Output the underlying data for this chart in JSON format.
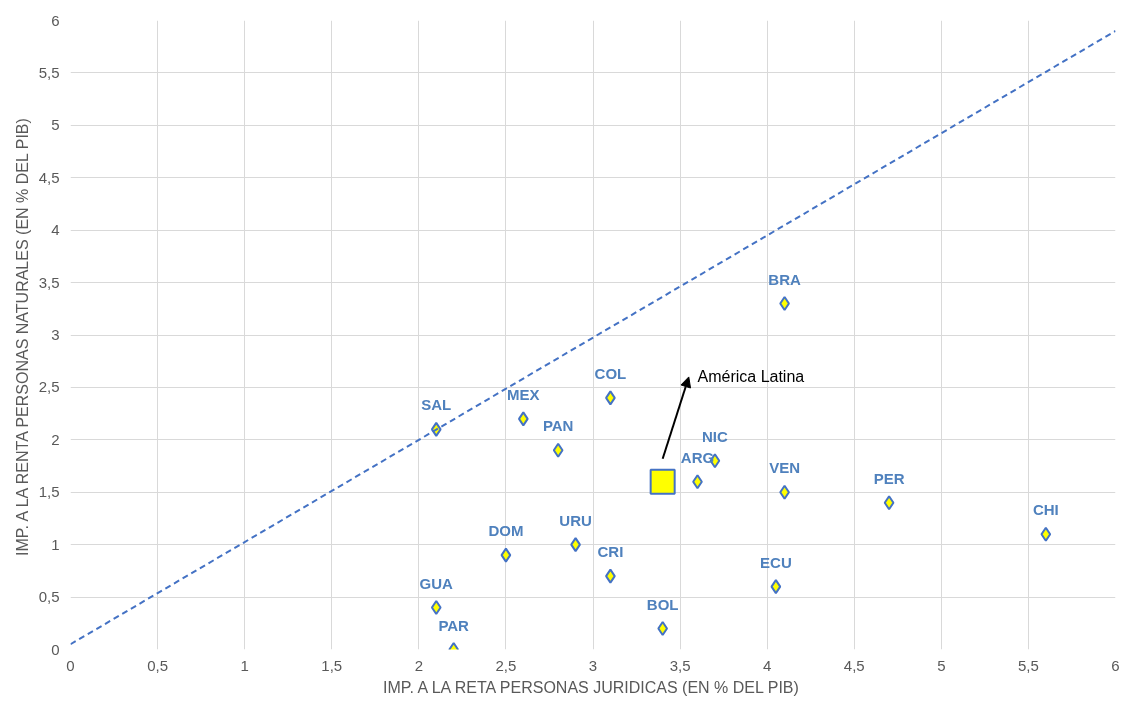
{
  "chart_data": {
    "type": "scatter",
    "xlabel": "IMP. A LA RETA PERSONAS JURIDICAS (EN % DEL PIB)",
    "ylabel": "IMP. A LA RENTA PERSONAS NATURALES (EN % DEL PIB)",
    "series": [
      {
        "marker": "diamond",
        "color": "#ffff00",
        "x": [
          4.1,
          3.1,
          2.1,
          2.6,
          2.8,
          3.7,
          3.6,
          4.1,
          4.7,
          5.6,
          2.5,
          2.9,
          3.1,
          4.05,
          2.1,
          2.2,
          3.4
        ],
        "values": [
          3.3,
          2.4,
          2.1,
          2.2,
          1.9,
          1.8,
          1.6,
          1.5,
          1.4,
          1.1,
          0.9,
          1.0,
          0.7,
          0.6,
          0.4,
          0.0,
          0.2
        ]
      },
      {
        "marker": "square",
        "color": "#ffff00",
        "x": [
          3.4
        ],
        "values": [
          1.6
        ]
      },
      {
        "type": "line",
        "line_style": "dashed",
        "color": "#4472c4",
        "x": [
          0,
          6
        ],
        "values": [
          0.05,
          5.9
        ]
      }
    ],
    "annotations": [
      {
        "text": "BRA",
        "x": 4.1,
        "y": 3.3
      },
      {
        "text": "COL",
        "x": 3.1,
        "y": 2.4
      },
      {
        "text": "SAL",
        "x": 2.1,
        "y": 2.1
      },
      {
        "text": "MEX",
        "x": 2.6,
        "y": 2.2
      },
      {
        "text": "PAN",
        "x": 2.8,
        "y": 1.9
      },
      {
        "text": "NIC",
        "x": 3.7,
        "y": 1.8
      },
      {
        "text": "ARG",
        "x": 3.6,
        "y": 1.6
      },
      {
        "text": "VEN",
        "x": 4.1,
        "y": 1.5
      },
      {
        "text": "PER",
        "x": 4.7,
        "y": 1.4
      },
      {
        "text": "CHI",
        "x": 5.6,
        "y": 1.1
      },
      {
        "text": "DOM",
        "x": 2.5,
        "y": 0.9
      },
      {
        "text": "URU",
        "x": 2.9,
        "y": 1.0
      },
      {
        "text": "CRI",
        "x": 3.1,
        "y": 0.7
      },
      {
        "text": "ECU",
        "x": 4.05,
        "y": 0.6
      },
      {
        "text": "GUA",
        "x": 2.1,
        "y": 0.4
      },
      {
        "text": "PAR",
        "x": 2.2,
        "y": 0.0
      },
      {
        "text": "BOL",
        "x": 3.4,
        "y": 0.2
      },
      "América Latina"
    ],
    "xlim": [
      0,
      6
    ],
    "ylim": [
      0,
      6
    ],
    "xticks": [
      0,
      {
        "value": 0.5,
        "label": "0,5"
      },
      1,
      {
        "value": 1.5,
        "label": "1,5"
      },
      2,
      {
        "value": 2.5,
        "label": "2,5"
      },
      3,
      {
        "value": 3.5,
        "label": "3,5"
      },
      4,
      {
        "value": 4.5,
        "label": "4,5"
      },
      5,
      {
        "value": 5.5,
        "label": "5,5"
      },
      6
    ],
    "yticks": [
      0,
      {
        "value": 0.5,
        "label": "0,5"
      },
      1,
      {
        "value": 1.5,
        "label": "1,5"
      },
      2,
      {
        "value": 2.5,
        "label": "2,5"
      },
      3,
      {
        "value": 3.5,
        "label": "3,5"
      },
      4,
      {
        "value": 4.5,
        "label": "4,5"
      },
      5,
      {
        "value": 5.5,
        "label": "5,5"
      },
      6
    ],
    "grid": true
  }
}
